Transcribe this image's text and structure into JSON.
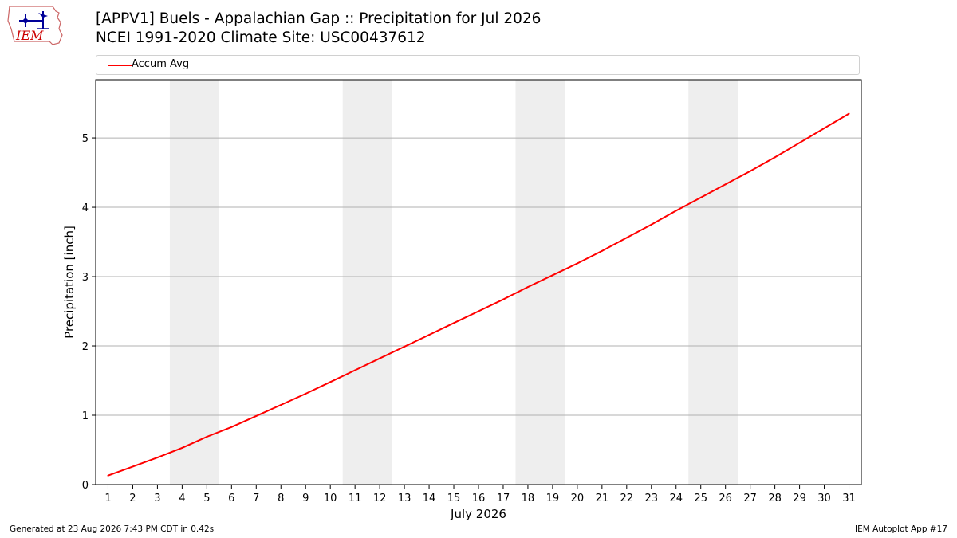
{
  "title_line1": "[APPV1] Buels - Appalachian Gap :: Precipitation for Jul 2026",
  "title_line2": "NCEI 1991-2020 Climate Site: USC00437612",
  "logo": {
    "text": "IEM",
    "icon": "iem-logo-icon"
  },
  "footer": {
    "left": "Generated at 23 Aug 2026 7:43 PM CDT in 0.42s",
    "right": "IEM Autoplot App #17"
  },
  "chart_data": {
    "type": "line",
    "xlabel": "July 2026",
    "ylabel": "Precipitation [inch]",
    "xlim": [
      0.5,
      31.5
    ],
    "ylim": [
      0,
      5.84
    ],
    "yticks": [
      0,
      1,
      2,
      3,
      4,
      5
    ],
    "grid": "horizontal",
    "legend_position": "top",
    "weekend_shading": [
      [
        3.5,
        5.5
      ],
      [
        10.5,
        12.5
      ],
      [
        17.5,
        19.5
      ],
      [
        24.5,
        26.5
      ]
    ],
    "x": [
      1,
      2,
      3,
      4,
      5,
      6,
      7,
      8,
      9,
      10,
      11,
      12,
      13,
      14,
      15,
      16,
      17,
      18,
      19,
      20,
      21,
      22,
      23,
      24,
      25,
      26,
      27,
      28,
      29,
      30,
      31
    ],
    "series": [
      {
        "name": "Accum Avg",
        "color": "#ff0000",
        "values": [
          0.13,
          0.26,
          0.39,
          0.53,
          0.69,
          0.83,
          0.99,
          1.15,
          1.31,
          1.48,
          1.65,
          1.82,
          1.99,
          2.16,
          2.33,
          2.5,
          2.67,
          2.85,
          3.02,
          3.19,
          3.37,
          3.56,
          3.75,
          3.95,
          4.14,
          4.33,
          4.52,
          4.72,
          4.93,
          5.14,
          5.35
        ]
      }
    ]
  }
}
